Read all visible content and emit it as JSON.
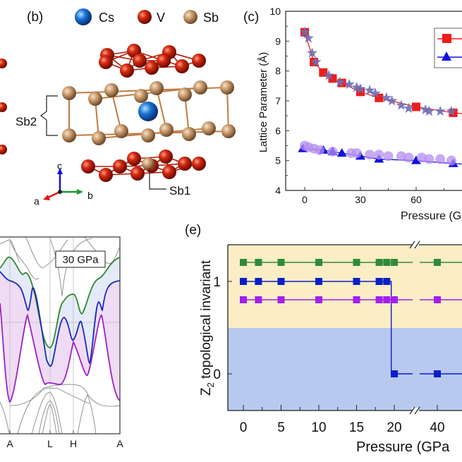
{
  "panels": {
    "b": {
      "label": "(b)",
      "legend": [
        {
          "name": "Cs",
          "color": "#1a6fd1"
        },
        {
          "name": "V",
          "color": "#c8200e"
        },
        {
          "name": "Sb",
          "color": "#c89a6e"
        }
      ],
      "site_labels": {
        "sb2": "Sb2",
        "sb1": "Sb1"
      },
      "axes": {
        "a": "a",
        "b": "b",
        "c": "c"
      }
    },
    "c": {
      "label": "(c)"
    },
    "d": {
      "label_box": "30 GPa"
    },
    "e": {
      "label": "(e)"
    }
  },
  "chart_data": [
    {
      "panel": "c",
      "type": "scatter",
      "ylabel": "Lattice Parameter (Å)",
      "xlabel": "Pressure (G",
      "ylim": [
        4,
        10
      ],
      "yticks": [
        "4",
        "5",
        "6",
        "7",
        "8",
        "9",
        "10"
      ],
      "xticks": [
        "0",
        "30",
        "60"
      ],
      "series": [
        {
          "marker": "square",
          "color": "#ee1c1c",
          "line": true,
          "x": [
            0,
            5,
            10,
            15,
            20,
            30,
            40,
            60,
            80
          ],
          "y": [
            9.3,
            8.3,
            7.95,
            7.75,
            7.6,
            7.3,
            7.1,
            6.8,
            6.6
          ]
        },
        {
          "marker": "star",
          "color": "#6e6eb4",
          "line": false,
          "x": [
            0,
            2,
            4,
            6,
            13,
            19,
            24,
            28,
            30,
            35,
            38,
            44,
            47,
            52,
            56,
            65,
            67,
            73,
            79
          ],
          "y": [
            9.3,
            9.1,
            8.6,
            8.3,
            7.85,
            7.62,
            7.55,
            7.45,
            7.4,
            7.35,
            7.25,
            7.1,
            7.0,
            6.85,
            6.75,
            6.7,
            6.65,
            6.65,
            6.65
          ]
        },
        {
          "marker": "triangle",
          "color": "#1010e0",
          "line": true,
          "x": [
            -1,
            10,
            15,
            20,
            30,
            40,
            60,
            80
          ],
          "y": [
            5.4,
            5.35,
            5.3,
            5.25,
            5.15,
            5.05,
            5.0,
            4.9
          ]
        },
        {
          "marker": "circle",
          "color": "#b48ef0",
          "line": false,
          "x": [
            0,
            2,
            5,
            8,
            15,
            25,
            28,
            35,
            40,
            45,
            52,
            56,
            63,
            67,
            73,
            79
          ],
          "y": [
            5.5,
            5.45,
            5.4,
            5.35,
            5.3,
            5.25,
            5.25,
            5.2,
            5.2,
            5.15,
            5.15,
            5.1,
            5.1,
            5.05,
            5.05,
            5.0
          ]
        }
      ]
    },
    {
      "panel": "d",
      "type": "line",
      "xticks": [
        "A",
        "L",
        "H",
        "A"
      ]
    },
    {
      "panel": "e",
      "type": "line",
      "ylabel": "Z2 topological invariant",
      "xlabel": "Pressure (GPa",
      "yticks": [
        "0",
        "1"
      ],
      "xticks": [
        "0",
        "5",
        "10",
        "15",
        "20",
        "40"
      ],
      "axis_break": true,
      "regions": [
        {
          "color": "#fbedc4"
        },
        {
          "color": "#b8c9f0"
        }
      ],
      "series": [
        {
          "color": "#2e8b3a",
          "x": [
            0,
            2,
            5,
            10,
            15,
            18,
            19,
            20,
            40
          ],
          "level": "upper"
        },
        {
          "color": "#0a1fc8",
          "x": [
            0,
            2,
            5,
            10,
            15,
            18,
            19,
            20,
            40
          ],
          "y": [
            1,
            1,
            1,
            1,
            1,
            1,
            1,
            0,
            0
          ]
        },
        {
          "color": "#a020f0",
          "x": [
            0,
            2,
            5,
            10,
            15,
            18,
            19,
            20,
            40
          ],
          "level": "lower"
        }
      ]
    }
  ]
}
